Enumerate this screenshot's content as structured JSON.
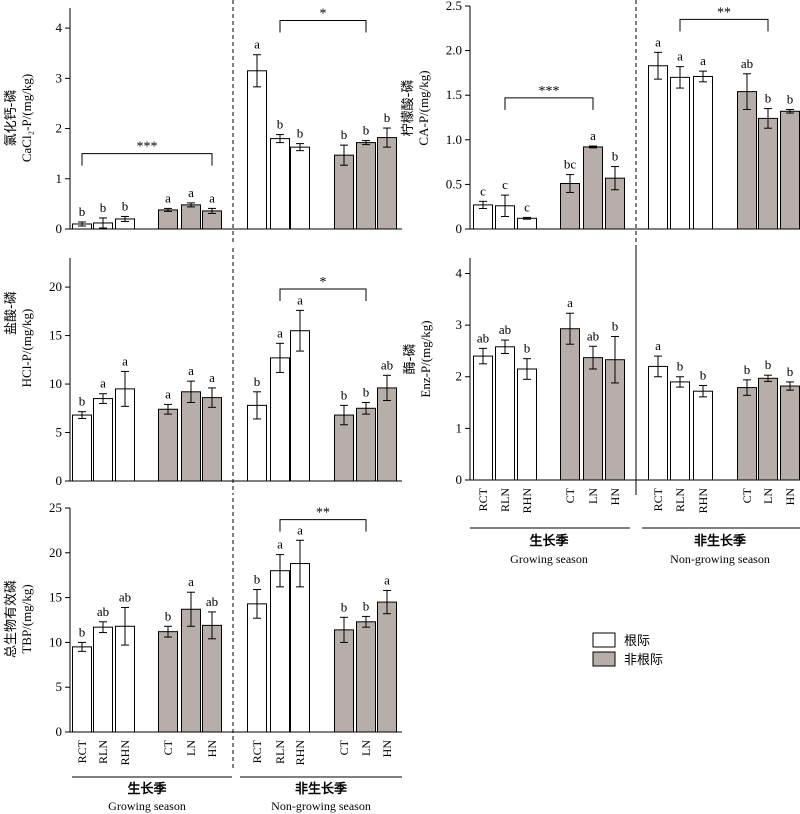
{
  "colors": {
    "rhizo": "#ffffff",
    "nonrhizo": "#b7aeaa",
    "stroke": "#000000"
  },
  "legend": {
    "rhizo": "根际",
    "nonrhizo": "非根际"
  },
  "bottom_labels": {
    "left": {
      "growing_cn": "生长季",
      "growing_en": "Growing season",
      "non_cn": "非生长季",
      "non_en": "Non-growing season"
    },
    "right": {
      "growing_cn": "生长季",
      "growing_en": "Growing season",
      "non_cn": "非生长季",
      "non_en": "Non-growing season"
    }
  },
  "categories": [
    "RCT",
    "RLN",
    "RHN",
    "CT",
    "LN",
    "HN",
    "RCT",
    "RLN",
    "RHN",
    "CT",
    "LN",
    "HN"
  ],
  "chart_data": [
    {
      "type": "bar",
      "ylabel_cn": "氯化钙-磷",
      "ylabel_en": "CaCl₂-P/(mg/kg)",
      "ylim": [
        0,
        4.4
      ],
      "yticks": [
        "0",
        "1",
        "2",
        "3",
        "4"
      ],
      "tickvals": [
        0,
        1,
        2,
        3,
        4
      ],
      "values": [
        0.1,
        0.12,
        0.2,
        0.38,
        0.48,
        0.36,
        3.15,
        1.8,
        1.63,
        1.47,
        1.72,
        1.82
      ],
      "errors": [
        0.04,
        0.1,
        0.05,
        0.03,
        0.04,
        0.05,
        0.32,
        0.08,
        0.07,
        0.2,
        0.04,
        0.19
      ],
      "letters": [
        "b",
        "b",
        "b",
        "a",
        "a",
        "a",
        "a",
        "b",
        "b",
        "b",
        "b",
        "b"
      ],
      "sig": [
        {
          "from": 0,
          "to": 5,
          "label": "***",
          "y": 1.5
        },
        {
          "from": 7,
          "to": 10,
          "label": "*",
          "y": 4.15
        }
      ]
    },
    {
      "type": "bar",
      "ylabel_cn": "柠檬酸-磷",
      "ylabel_en": "CA-P/(mg/kg)",
      "ylim": [
        0,
        2.5
      ],
      "yticks": [
        "0",
        "0.5",
        "1.0",
        "1.5",
        "2.0",
        "2.5"
      ],
      "tickvals": [
        0,
        0.5,
        1.0,
        1.5,
        2.0,
        2.5
      ],
      "values": [
        0.27,
        0.26,
        0.12,
        0.51,
        0.92,
        0.57,
        1.83,
        1.7,
        1.71,
        1.54,
        1.24,
        1.32
      ],
      "errors": [
        0.04,
        0.12,
        0.01,
        0.1,
        0.01,
        0.13,
        0.15,
        0.12,
        0.06,
        0.2,
        0.11,
        0.02
      ],
      "letters": [
        "c",
        "c",
        "c",
        "bc",
        "a",
        "b",
        "a",
        "a",
        "a",
        "ab",
        "b",
        "b"
      ],
      "sig": [
        {
          "from": 1,
          "to": 4,
          "label": "***",
          "y": 1.47
        },
        {
          "from": 7,
          "to": 10,
          "label": "**",
          "y": 2.35
        }
      ]
    },
    {
      "type": "bar",
      "ylabel_cn": "盐酸-磷",
      "ylabel_en": "HCl-P/(mg/kg)",
      "ylim": [
        0,
        23
      ],
      "yticks": [
        "0",
        "5",
        "10",
        "15",
        "20"
      ],
      "tickvals": [
        0,
        5,
        10,
        15,
        20
      ],
      "values": [
        6.8,
        8.5,
        9.5,
        7.4,
        9.2,
        8.6,
        7.8,
        12.7,
        15.5,
        6.8,
        7.5,
        9.6
      ],
      "errors": [
        0.35,
        0.5,
        1.8,
        0.5,
        1.1,
        1.0,
        1.4,
        1.5,
        2.1,
        1.0,
        0.6,
        1.3
      ],
      "letters": [
        "b",
        "a",
        "a",
        "a",
        "a",
        "a",
        "b",
        "a",
        "a",
        "b",
        "b",
        "ab"
      ],
      "sig": [
        {
          "from": 7,
          "to": 10,
          "label": "*",
          "y": 19.8
        }
      ]
    },
    {
      "type": "bar",
      "ylabel_cn": "酶-磷",
      "ylabel_en": "Enz-P/(mg/kg)",
      "ylim": [
        0,
        4.3
      ],
      "yticks": [
        "0",
        "1",
        "2",
        "3",
        "4"
      ],
      "tickvals": [
        0,
        1,
        2,
        3,
        4
      ],
      "values": [
        2.4,
        2.58,
        2.15,
        2.93,
        2.37,
        2.33,
        2.2,
        1.9,
        1.72,
        1.79,
        1.97,
        1.82
      ],
      "errors": [
        0.15,
        0.13,
        0.2,
        0.3,
        0.22,
        0.45,
        0.2,
        0.1,
        0.11,
        0.15,
        0.06,
        0.08
      ],
      "letters": [
        "ab",
        "ab",
        "b",
        "a",
        "ab",
        "b",
        "a",
        "b",
        "b",
        "b",
        "b",
        "b"
      ],
      "sig": []
    },
    {
      "type": "bar",
      "ylabel_cn": "总生物有效磷",
      "ylabel_en": "TBP/(mg/kg)",
      "ylim": [
        0,
        25
      ],
      "yticks": [
        "0",
        "5",
        "10",
        "15",
        "20",
        "25"
      ],
      "tickvals": [
        0,
        5,
        10,
        15,
        20,
        25
      ],
      "values": [
        9.5,
        11.7,
        11.8,
        11.2,
        13.7,
        11.9,
        14.3,
        18.0,
        18.8,
        11.4,
        12.3,
        14.5
      ],
      "errors": [
        0.5,
        0.6,
        2.1,
        0.6,
        1.9,
        1.5,
        1.6,
        1.8,
        2.6,
        1.4,
        0.6,
        1.3
      ],
      "letters": [
        "b",
        "ab",
        "ab",
        "b",
        "a",
        "ab",
        "b",
        "a",
        "a",
        "b",
        "b",
        "a"
      ],
      "sig": [
        {
          "from": 7,
          "to": 10,
          "label": "**",
          "y": 23.7
        }
      ]
    }
  ]
}
